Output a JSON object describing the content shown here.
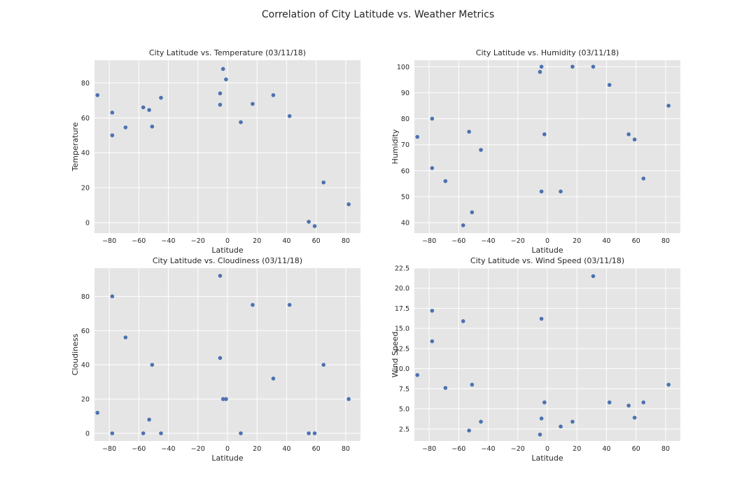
{
  "figure": {
    "suptitle": "Correlation of City Latitude vs. Weather Metrics"
  },
  "colors": {
    "plot_background": "#E5E5E5",
    "grid": "#FFFFFF",
    "marker": "#4C72B0"
  },
  "chart_data": [
    {
      "type": "scatter",
      "title": "City Latitude vs. Temperature (03/11/18)",
      "xlabel": "Latitude",
      "ylabel": "Temperature",
      "xlim": [
        -90,
        90
      ],
      "ylim": [
        -6,
        93
      ],
      "xticks": [
        -80,
        -60,
        -40,
        -20,
        0,
        20,
        40,
        60,
        80
      ],
      "xtick_labels": [
        "−80",
        "−60",
        "−40",
        "−20",
        "0",
        "20",
        "40",
        "60",
        "80"
      ],
      "yticks": [
        0,
        20,
        40,
        60,
        80
      ],
      "ytick_labels": [
        "0",
        "20",
        "40",
        "60",
        "80"
      ],
      "grid": true,
      "x": [
        -88,
        -78,
        -78,
        -69,
        -57,
        -53,
        -51,
        -45,
        -5,
        -5,
        -3,
        -1,
        9,
        17,
        31,
        42,
        55,
        59,
        65,
        82
      ],
      "y": [
        73,
        63,
        50,
        54.5,
        66,
        64.5,
        55,
        71.5,
        74,
        67.5,
        88,
        82,
        57.5,
        68,
        73,
        61,
        0.5,
        -2,
        23,
        10.5
      ]
    },
    {
      "type": "scatter",
      "title": "City Latitude vs. Humidity (03/11/18)",
      "xlabel": "Latitude",
      "ylabel": "Humidity",
      "xlim": [
        -90,
        90
      ],
      "ylim": [
        36,
        102.5
      ],
      "xticks": [
        -80,
        -60,
        -40,
        -20,
        0,
        20,
        40,
        60,
        80
      ],
      "xtick_labels": [
        "−80",
        "−60",
        "−40",
        "−20",
        "0",
        "20",
        "40",
        "60",
        "80"
      ],
      "yticks": [
        40,
        50,
        60,
        70,
        80,
        90,
        100
      ],
      "ytick_labels": [
        "40",
        "50",
        "60",
        "70",
        "80",
        "90",
        "100"
      ],
      "grid": true,
      "x": [
        -88,
        -78,
        -78,
        -69,
        -57,
        -53,
        -51,
        -45,
        -5,
        -4,
        -4,
        -2,
        9,
        17,
        31,
        42,
        55,
        59,
        65,
        82
      ],
      "y": [
        73,
        80,
        61,
        56,
        39,
        75,
        44,
        68,
        98,
        100,
        52,
        74,
        52,
        100,
        100,
        93,
        74,
        72,
        57,
        85
      ]
    },
    {
      "type": "scatter",
      "title": "City Latitude vs. Cloudiness (03/11/18)",
      "xlabel": "Latitude",
      "ylabel": "Cloudiness",
      "xlim": [
        -90,
        90
      ],
      "ylim": [
        -4.5,
        96.5
      ],
      "xticks": [
        -80,
        -60,
        -40,
        -20,
        0,
        20,
        40,
        60,
        80
      ],
      "xtick_labels": [
        "−80",
        "−60",
        "−40",
        "−20",
        "0",
        "20",
        "40",
        "60",
        "80"
      ],
      "yticks": [
        0,
        20,
        40,
        60,
        80
      ],
      "ytick_labels": [
        "0",
        "20",
        "40",
        "60",
        "80"
      ],
      "grid": true,
      "x": [
        -88,
        -78,
        -78,
        -69,
        -57,
        -53,
        -51,
        -45,
        -5,
        -5,
        -3,
        -1,
        9,
        17,
        31,
        42,
        55,
        59,
        65,
        82
      ],
      "y": [
        12,
        80,
        0,
        56,
        0,
        8,
        40,
        0,
        92,
        44,
        20,
        20,
        0,
        75,
        32,
        75,
        0,
        0,
        40,
        20
      ]
    },
    {
      "type": "scatter",
      "title": "City Latitude vs. Wind Speed (03/11/18)",
      "xlabel": "Latitude",
      "ylabel": "Wind Speed",
      "xlim": [
        -90,
        90
      ],
      "ylim": [
        1.0,
        22.5
      ],
      "xticks": [
        -80,
        -60,
        -40,
        -20,
        0,
        20,
        40,
        60,
        80
      ],
      "xtick_labels": [
        "−80",
        "−60",
        "−40",
        "−20",
        "0",
        "20",
        "40",
        "60",
        "80"
      ],
      "yticks": [
        2.5,
        5.0,
        7.5,
        10.0,
        12.5,
        15.0,
        17.5,
        20.0,
        22.5
      ],
      "ytick_labels": [
        "2.5",
        "5.0",
        "7.5",
        "10.0",
        "12.5",
        "15.0",
        "17.5",
        "20.0",
        "22.5"
      ],
      "grid": true,
      "x": [
        -88,
        -78,
        -78,
        -69,
        -57,
        -53,
        -51,
        -45,
        -5,
        -4,
        -4,
        -2,
        9,
        17,
        31,
        42,
        55,
        59,
        65,
        82
      ],
      "y": [
        9.2,
        17.2,
        13.4,
        7.6,
        15.9,
        2.3,
        8.0,
        3.4,
        1.8,
        3.8,
        16.2,
        5.8,
        2.8,
        3.4,
        21.5,
        5.8,
        5.4,
        3.9,
        5.8,
        8.0
      ]
    }
  ]
}
